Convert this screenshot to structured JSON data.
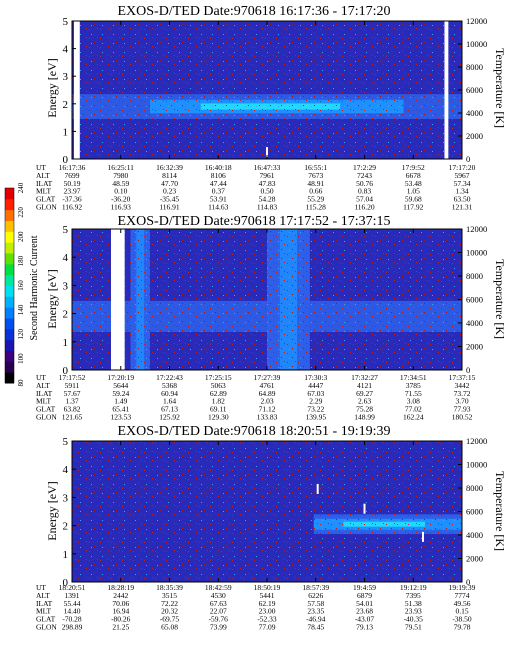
{
  "colorbar": {
    "label": "Second Harmonic Current",
    "ticks": [
      "80",
      "100",
      "120",
      "140",
      "160",
      "180",
      "200",
      "220",
      "240"
    ],
    "colors": [
      "#000000",
      "#2a0050",
      "#3c0080",
      "#1818b0",
      "#0a30d8",
      "#0050f0",
      "#0080ff",
      "#00b0ff",
      "#00e0f0",
      "#00e8a0",
      "#00e040",
      "#60e000",
      "#c0f000",
      "#ffff00",
      "#ffc000",
      "#ff7000",
      "#ff2000",
      "#e00000"
    ]
  },
  "colors": {
    "background": "#2a2ab8",
    "band": "#1e90ff",
    "core": "#22d8ff",
    "speckle": "#c02020",
    "gap": "#ffffff"
  },
  "ephemeris_labels": [
    "UT",
    "ALT",
    "ILAT",
    "MLT",
    "GLAT",
    "GLON"
  ],
  "chart_data": [
    {
      "type": "heatmap",
      "title": "EXOS-D/TED   Date:970618   16:17:36 - 17:17:20",
      "ylabel": "Energy [eV]",
      "y2label": "Temperature [K]",
      "ylim": [
        0,
        5
      ],
      "yticks": [
        "0",
        "1",
        "2",
        "3",
        "4",
        "5"
      ],
      "y2lim": [
        0,
        12000
      ],
      "y2ticks": [
        "0",
        "2000",
        "4000",
        "6000",
        "8000",
        "10000",
        "12000"
      ],
      "x": [
        "16:17:36",
        "16:25:11",
        "16:32:39",
        "16:40:18",
        "16:47:33",
        "16:55:1",
        "17:2:29",
        "17:9:52",
        "17:17:20"
      ],
      "ephemeris": {
        "ALT": [
          "7699",
          "7980",
          "8114",
          "8106",
          "7961",
          "7673",
          "7243",
          "6678",
          "5967"
        ],
        "ILAT": [
          "50.19",
          "48.59",
          "47.70",
          "47.44",
          "47.83",
          "48.91",
          "50.76",
          "53.48",
          "57.34"
        ],
        "MLT": [
          "23.97",
          "0.10",
          "0.23",
          "0.37",
          "0.50",
          "0.66",
          "0.83",
          "1.05",
          "1.34"
        ],
        "GLAT": [
          "-37.36",
          "-36.20",
          "-35.45",
          "53.91",
          "54.28",
          "55.29",
          "57.04",
          "59.68",
          "63.50"
        ],
        "GLON": [
          "116.92",
          "116.93",
          "116.91",
          "114.63",
          "114.83",
          "115.28",
          "116.20",
          "117.92",
          "121.31"
        ]
      },
      "band": {
        "center_eV": 1.9,
        "halfwidth_eV": 0.45,
        "core_start_fraction": 0.2,
        "core_end_fraction": 0.85
      },
      "data_gaps": [
        {
          "start_fraction": 0.005,
          "end_fraction": 0.02
        },
        {
          "start_fraction": 0.955,
          "end_fraction": 0.965
        }
      ],
      "temperature_marks": [
        {
          "t_fraction": 0.5,
          "energy_eV": 0.25
        }
      ]
    },
    {
      "type": "heatmap",
      "title": "EXOS-D/TED   Date:970618   17:17:52 - 17:37:15",
      "ylabel": "Energy [eV]",
      "y2label": "Temperature [K]",
      "ylim": [
        0,
        5
      ],
      "yticks": [
        "0",
        "1",
        "2",
        "3",
        "4",
        "5"
      ],
      "y2lim": [
        0,
        12000
      ],
      "y2ticks": [
        "0",
        "2000",
        "4000",
        "6000",
        "8000",
        "10000",
        "12000"
      ],
      "x": [
        "17:17:52",
        "17:20:19",
        "17:22:43",
        "17:25:15",
        "17:27:39",
        "17:30:3",
        "17:32:27",
        "17:34:51",
        "17:37:15"
      ],
      "ephemeris": {
        "ALT": [
          "5911",
          "5644",
          "5368",
          "5063",
          "4761",
          "4447",
          "4121",
          "3785",
          "3442"
        ],
        "ILAT": [
          "57.67",
          "59.24",
          "60.94",
          "62.89",
          "64.89",
          "67.03",
          "69.27",
          "71.55",
          "73.72"
        ],
        "MLT": [
          "1.37",
          "1.49",
          "1.64",
          "1.82",
          "2.03",
          "2.29",
          "2.63",
          "3.08",
          "3.70"
        ],
        "GLAT": [
          "63.82",
          "65.41",
          "67.13",
          "69.11",
          "71.12",
          "73.22",
          "75.28",
          "77.02",
          "77.93"
        ],
        "GLON": [
          "121.65",
          "123.53",
          "125.92",
          "129.30",
          "133.83",
          "139.95",
          "148.99",
          "162.24",
          "180.52"
        ]
      },
      "band": {
        "center_eV": 1.9,
        "halfwidth_eV": 0.55,
        "core_start_fraction": 0.0,
        "core_end_fraction": 0.0
      },
      "data_gaps": [
        {
          "start_fraction": 0.1,
          "end_fraction": 0.135
        }
      ],
      "enhancements": [
        {
          "start_fraction": 0.15,
          "end_fraction": 0.2
        },
        {
          "start_fraction": 0.5,
          "end_fraction": 0.61
        }
      ]
    },
    {
      "type": "heatmap",
      "title": "EXOS-D/TED   Date:970618   18:20:51 - 19:19:39",
      "ylabel": "Energy [eV]",
      "y2label": "Temperature [K]",
      "ylim": [
        0,
        5
      ],
      "yticks": [
        "0",
        "1",
        "2",
        "3",
        "4",
        "5"
      ],
      "y2lim": [
        0,
        12000
      ],
      "y2ticks": [
        "0",
        "2000",
        "4000",
        "6000",
        "8000",
        "10000",
        "12000"
      ],
      "x": [
        "18:20:51",
        "18:28:19",
        "18:35:39",
        "18:42:59",
        "18:50:19",
        "18:57:39",
        "19:4:59",
        "19:12:19",
        "19:19:39"
      ],
      "ephemeris": {
        "ALT": [
          "1391",
          "2442",
          "3515",
          "4530",
          "5441",
          "6226",
          "6879",
          "7395",
          "7774"
        ],
        "ILAT": [
          "55.44",
          "70.06",
          "72.22",
          "67.63",
          "62.19",
          "57.58",
          "54.01",
          "51.38",
          "49.56"
        ],
        "MLT": [
          "14.40",
          "16.94",
          "20.32",
          "22.07",
          "23.00",
          "23.35",
          "23.68",
          "23.93",
          "0.15"
        ],
        "GLAT": [
          "-70.28",
          "-80.26",
          "-69.75",
          "-59.76",
          "-52.33",
          "-46.94",
          "-43.07",
          "-40.35",
          "-38.50"
        ],
        "GLON": [
          "298.89",
          "21.25",
          "65.08",
          "73.99",
          "77.09",
          "78.45",
          "79.13",
          "79.51",
          "79.78"
        ]
      },
      "band": {
        "center_eV": 2.05,
        "halfwidth_eV": 0.35,
        "core_start_fraction": 0.62,
        "core_end_fraction": 1.0
      },
      "data_gaps": [],
      "temperature_marks": [
        {
          "t_fraction": 0.63,
          "energy_eV": 3.3
        },
        {
          "t_fraction": 0.75,
          "energy_eV": 2.6
        },
        {
          "t_fraction": 0.9,
          "energy_eV": 1.6
        }
      ]
    }
  ]
}
